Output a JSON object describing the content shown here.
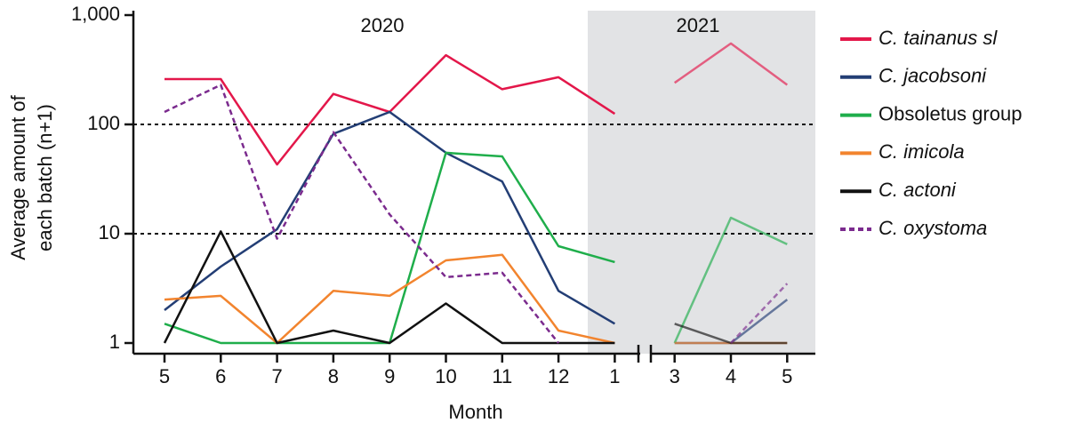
{
  "chart_data": {
    "type": "line",
    "ylabel": [
      "Average amount of",
      "each batch (n+1)"
    ],
    "xlabel": "Month",
    "annotations": [
      "2020",
      "2021"
    ],
    "categories": [
      "5",
      "6",
      "7",
      "8",
      "9",
      "10",
      "11",
      "12",
      "1",
      "3",
      "4",
      "5"
    ],
    "log_scale": true,
    "ylim": [
      1,
      1000
    ],
    "yticks": [
      1,
      10,
      100,
      {
        "value": 1000,
        "label": "1,000"
      }
    ],
    "reference_lines": [
      10,
      100
    ],
    "series": [
      {
        "name": "C. tainanus sl",
        "color": "#e3174a",
        "values": [
          260,
          260,
          43,
          190,
          130,
          430,
          210,
          270,
          125,
          240,
          550,
          230
        ]
      },
      {
        "name": "C. jacobsoni",
        "color": "#233e75",
        "values": [
          2.0,
          5,
          11,
          82,
          130,
          55,
          30,
          3.0,
          1.5,
          1,
          1,
          2.5
        ]
      },
      {
        "name": "Obsoletus group",
        "color": "#1fae4b",
        "values": [
          1.5,
          1,
          1,
          1,
          1,
          55,
          51,
          7.7,
          5.5,
          1,
          14,
          8
        ]
      },
      {
        "name": "C. imicola",
        "color": "#f2842e",
        "values": [
          2.5,
          2.7,
          1,
          3,
          2.7,
          5.7,
          6.4,
          1.3,
          1,
          1,
          1,
          1
        ]
      },
      {
        "name": "C. actoni",
        "color": "#111111",
        "values": [
          1,
          10.5,
          1,
          1.3,
          1,
          2.3,
          1,
          1,
          1,
          1.5,
          1,
          1
        ]
      },
      {
        "name": "C. oxystoma",
        "color": "#7b2b8e",
        "dashed": true,
        "values": [
          130,
          230,
          9,
          85,
          15,
          4,
          4.4,
          1,
          null,
          null,
          1,
          3.5
        ]
      }
    ]
  }
}
